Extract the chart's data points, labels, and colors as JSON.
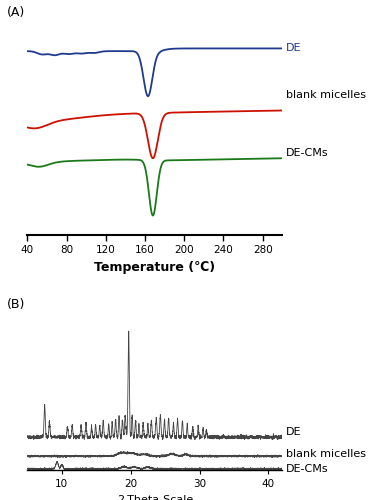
{
  "panel_A_label": "(A)",
  "panel_B_label": "(B)",
  "dsc_xlabel": "Temperature (℃)",
  "dsc_xticks": [
    40,
    80,
    120,
    160,
    200,
    240,
    280
  ],
  "dsc_xlim": [
    40,
    300
  ],
  "xrd_xlabel": "2-Theta-Scale",
  "xrd_xticks": [
    10,
    20,
    30,
    40
  ],
  "xrd_xlim": [
    5,
    42
  ],
  "colors": {
    "DE": "#1f3a8f",
    "blank": "#cc1100",
    "DECMs": "#1a7a1a",
    "xrd": "#444444"
  },
  "label_DE": "DE",
  "label_blank": "blank micelles",
  "label_DECMs": "DE-CMs"
}
